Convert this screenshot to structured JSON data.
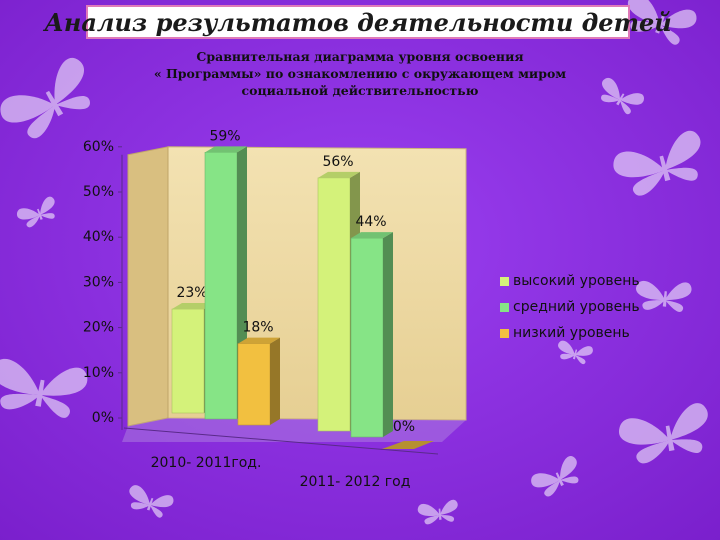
{
  "header": {
    "title": "Анализ результатов деятельности детей"
  },
  "chart_data": {
    "type": "bar",
    "title": "Сравнительная диаграмма уровня освоения « Программы» по ознакомлению с окружающем миром социальной действительностью",
    "title_lines": [
      "Сравнительная диаграмма уровня освоения",
      "« Программы» по ознакомлению с окружающем миром",
      "социальной действительностью"
    ],
    "categories": [
      "2010- 2011год.",
      "2011- 2012 год"
    ],
    "series": [
      {
        "name": "высокий уровень",
        "values": [
          23,
          56
        ],
        "labels": [
          "23%",
          "56%"
        ],
        "color": "#d4f27a"
      },
      {
        "name": "средний уровень",
        "values": [
          59,
          44
        ],
        "labels": [
          "59%",
          "44%"
        ],
        "color": "#86e486"
      },
      {
        "name": "низкий уровень",
        "values": [
          18,
          0
        ],
        "labels": [
          "18%",
          "0%"
        ],
        "color": "#f2c040"
      }
    ],
    "yticks": [
      "0%",
      "10%",
      "20%",
      "30%",
      "40%",
      "50%",
      "60%"
    ],
    "ylim": [
      0,
      60
    ],
    "legend_position": "right",
    "grid": false,
    "chart_3d": true
  },
  "colors": {
    "background": "#8a2bd8",
    "wall": "#efd9a0",
    "header_border": "#e07ab8"
  }
}
